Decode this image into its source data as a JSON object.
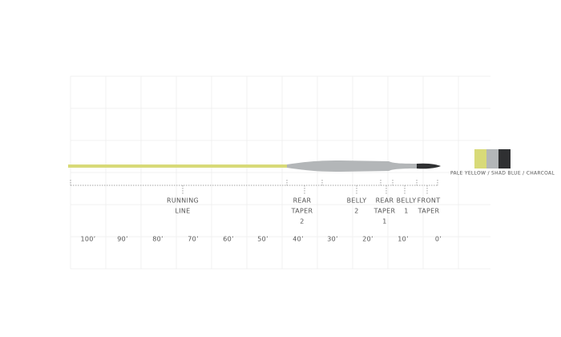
{
  "scale": {
    "labels": [
      "100’",
      "90’",
      "80’",
      "70’",
      "60’",
      "50’",
      "40’",
      "30’",
      "20’",
      "10’",
      "0’"
    ]
  },
  "sections": [
    {
      "lines": [
        "RUNNING",
        "LINE"
      ]
    },
    {
      "lines": [
        "REAR",
        "TAPER",
        "2"
      ]
    },
    {
      "lines": [
        "BELLY",
        "2"
      ]
    },
    {
      "lines": [
        "REAR",
        "TAPER",
        "1"
      ]
    },
    {
      "lines": [
        "BELLY",
        "1"
      ]
    },
    {
      "lines": [
        "FRONT",
        "TAPER"
      ]
    }
  ],
  "legend": {
    "label": "PALE YELLOW / SHAD BLUE / CHARCOAL",
    "colors": [
      "#d8da78",
      "#b3b6b8",
      "#2f3032"
    ]
  }
}
